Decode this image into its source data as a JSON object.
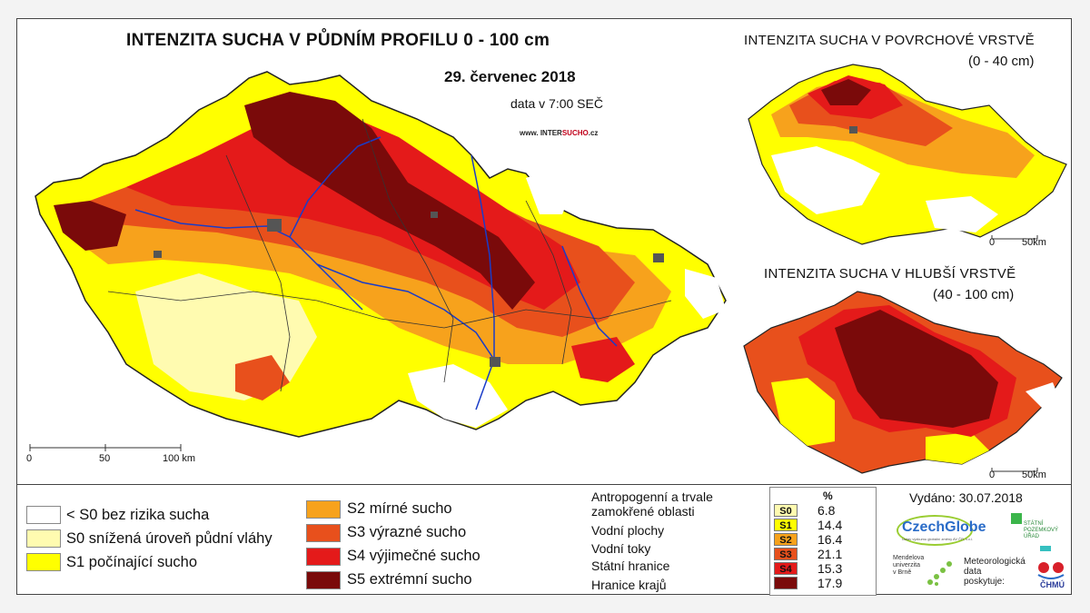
{
  "map": {
    "title": "INTENZITA SUCHA V PŮDNÍM PROFILU 0 - 100 cm",
    "date": "29. červenec 2018",
    "time": "data v 7:00 SEČ",
    "website": {
      "pre": "www. INTER",
      "brand": "SUCHO",
      "post": ".cz"
    },
    "scale": {
      "zero": "0",
      "mid": "50",
      "end": "100 km"
    }
  },
  "insets": {
    "surface": {
      "title": "INTENZITA SUCHA V POVRCHOVÉ VRSTVĚ",
      "range": "(0 - 40 cm)",
      "scale_zero": "0",
      "scale_end": "50km"
    },
    "deep": {
      "title": "INTENZITA SUCHA V HLUBŠÍ VRSTVĚ",
      "range": "(40 - 100 cm)",
      "scale_zero": "0",
      "scale_end": "50km"
    }
  },
  "legend": {
    "classes": [
      {
        "label": "< S0 bez rizika sucha",
        "color": "#ffffff"
      },
      {
        "label": "S0 snížená úroveň půdní vláhy",
        "color": "#fffbb0"
      },
      {
        "label": "S1 počínající sucho",
        "color": "#ffff00"
      },
      {
        "label": "S2 mírné sucho",
        "color": "#f7a21c"
      },
      {
        "label": "S3 výrazné sucho",
        "color": "#e8501c"
      },
      {
        "label": "S4 výjimečné sucho",
        "color": "#e41a1a"
      },
      {
        "label": "S5 extrémní sucho",
        "color": "#7a0a0a"
      }
    ],
    "features": [
      {
        "label": "Antropogenní a trvale zamokřené oblasti",
        "line1": "Antropogenní a trvale",
        "line2": "zamokřené oblasti",
        "icon": "square-dark-gray-icon"
      },
      {
        "label": "Vodní plochy",
        "icon": "square-blue-icon"
      },
      {
        "label": "Vodní toky",
        "icon": "wave-line-icon"
      },
      {
        "label": "Státní hranice",
        "icon": "country-outline-icon"
      },
      {
        "label": "Hranice krajů",
        "icon": "region-outline-icon"
      }
    ]
  },
  "percentages": {
    "header": "%",
    "rows": [
      {
        "code": "S0",
        "value": "6.8",
        "color": "#fffbb0"
      },
      {
        "code": "S1",
        "value": "14.4",
        "color": "#ffff00"
      },
      {
        "code": "S2",
        "value": "16.4",
        "color": "#f7a21c"
      },
      {
        "code": "S3",
        "value": "21.1",
        "color": "#e8501c"
      },
      {
        "code": "S4",
        "value": "15.3",
        "color": "#e41a1a"
      },
      {
        "code": "S5",
        "value": "17.9",
        "color": "#7a0a0a"
      }
    ]
  },
  "issued": "Vydáno: 30.07.2018",
  "logos": {
    "czechglobe": "CzechGlobe",
    "czechglobe_sub": "Ústav výzkumu globální změny AV ČR, v.v.i.",
    "spu_1": "STÁTNÍ",
    "spu_2": "POZEMKOVÝ",
    "spu_3": "ÚŘAD",
    "mendel_1": "Mendelova",
    "mendel_2": "univerzita",
    "mendel_3": "v Brně",
    "meteo_1": "Meteorologická",
    "meteo_2": "data",
    "meteo_3": "poskytuje:",
    "chmu": "ČHMÚ"
  }
}
